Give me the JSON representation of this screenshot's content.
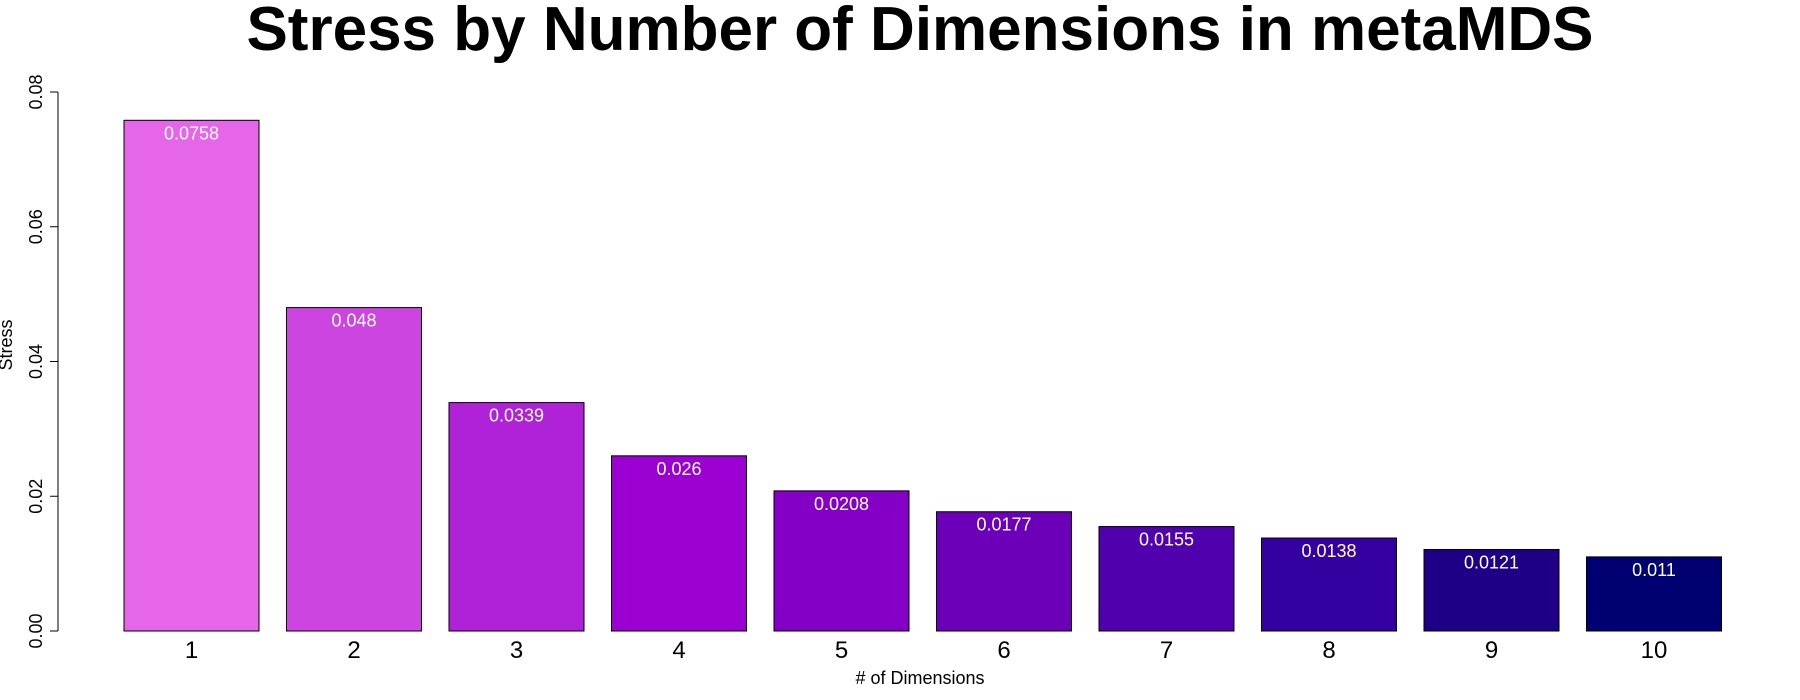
{
  "chart_data": {
    "type": "bar",
    "title": "Stress by Number of Dimensions in metaMDS",
    "xlabel": "# of Dimensions",
    "ylabel": "Stress",
    "categories": [
      "1",
      "2",
      "3",
      "4",
      "5",
      "6",
      "7",
      "8",
      "9",
      "10"
    ],
    "values": [
      0.0758,
      0.048,
      0.0339,
      0.026,
      0.0208,
      0.0177,
      0.0155,
      0.0138,
      0.0121,
      0.011
    ],
    "data_labels": [
      "0.0758",
      "0.048",
      "0.0339",
      "0.026",
      "0.0208",
      "0.0177",
      "0.0155",
      "0.0138",
      "0.0121",
      "0.011"
    ],
    "ylim": [
      0,
      0.08
    ],
    "yticks": [
      0,
      0.02,
      0.04,
      0.06,
      0.08
    ],
    "ytick_labels": [
      "0.00",
      "0.02",
      "0.04",
      "0.06",
      "0.08"
    ],
    "colors": [
      "#e566e9",
      "#cc45e0",
      "#af22d8",
      "#9900d1",
      "#8500c7",
      "#6b00b8",
      "#5000ad",
      "#3500a0",
      "#1d0086",
      "#010073"
    ],
    "grid": false,
    "legend": "none"
  }
}
